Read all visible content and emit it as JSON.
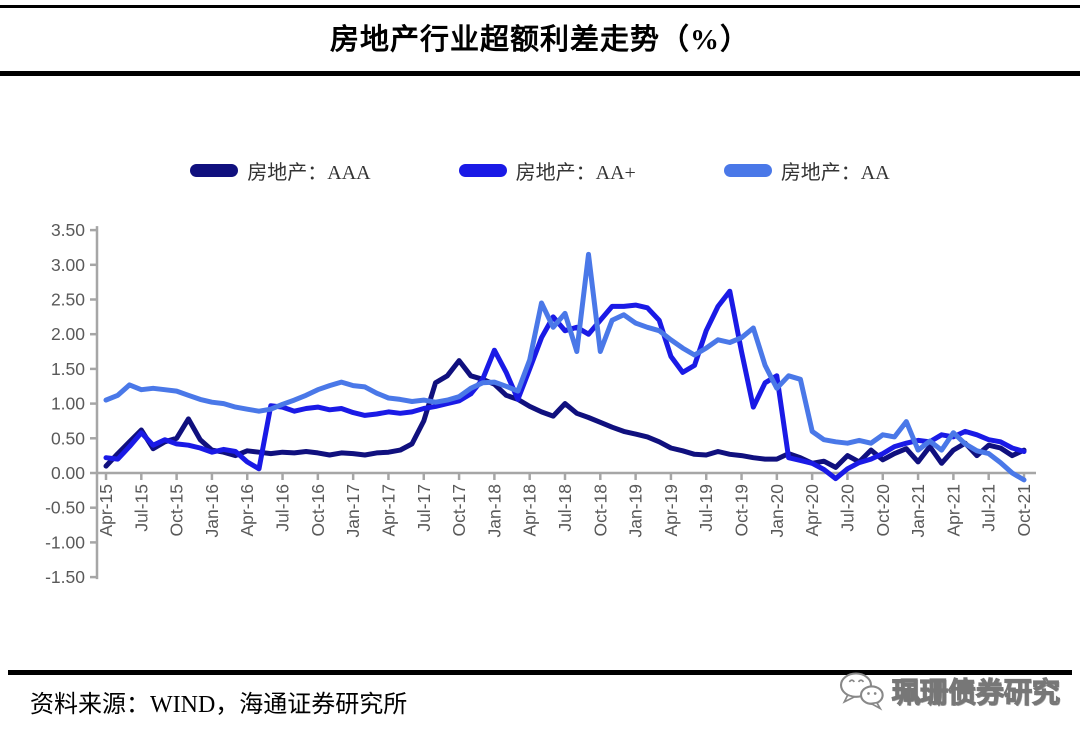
{
  "title": "房地产行业超额利差走势（%）",
  "legend": [
    {
      "label": "房地产：AAA",
      "color": "#10107E"
    },
    {
      "label": "房地产：AA+",
      "color": "#1A1AE6"
    },
    {
      "label": "房地产：AA",
      "color": "#4A78E8"
    }
  ],
  "source": {
    "label": "资料来源：WIND，海通证券研究所"
  },
  "watermark": {
    "text": "珮珊债券研究",
    "icon": "wechat-icon"
  },
  "chart_data": {
    "type": "line",
    "title": "房地产行业超额利差走势（%）",
    "xlabel": "",
    "ylabel": "",
    "ylim": [
      -1.5,
      3.5
    ],
    "ytick_step": 0.5,
    "grid": false,
    "legend_position": "top",
    "axis_color": "#a6a6a6",
    "label_color": "#595959",
    "ytick_labels": [
      "3.50",
      "3.00",
      "2.50",
      "2.00",
      "1.50",
      "1.00",
      "0.50",
      "0.00",
      "-0.50",
      "-1.00",
      "-1.50"
    ],
    "xtick_labels": [
      "Apr-15",
      "Jul-15",
      "Oct-15",
      "Jan-16",
      "Apr-16",
      "Jul-16",
      "Oct-16",
      "Jan-17",
      "Apr-17",
      "Jul-17",
      "Oct-17",
      "Jan-18",
      "Apr-18",
      "Jul-18",
      "Oct-18",
      "Jan-19",
      "Apr-19",
      "Jul-19",
      "Oct-19",
      "Jan-20",
      "Apr-20",
      "Jul-20",
      "Oct-20",
      "Jan-21",
      "Apr-21",
      "Jul-21",
      "Oct-21"
    ],
    "points_per_tick": 3,
    "x_frequency": "monthly",
    "x_range": [
      "Apr-15",
      "Oct-21"
    ],
    "series": [
      {
        "name": "房地产：AAA",
        "color": "#10107E",
        "values": [
          0.1,
          0.28,
          0.45,
          0.62,
          0.35,
          0.45,
          0.5,
          0.78,
          0.48,
          0.33,
          0.3,
          0.25,
          0.32,
          0.3,
          0.28,
          0.3,
          0.29,
          0.31,
          0.29,
          0.26,
          0.29,
          0.28,
          0.26,
          0.29,
          0.3,
          0.33,
          0.42,
          0.75,
          1.3,
          1.4,
          1.62,
          1.4,
          1.35,
          1.28,
          1.12,
          1.06,
          0.96,
          0.88,
          0.82,
          1.0,
          0.86,
          0.8,
          0.73,
          0.66,
          0.6,
          0.56,
          0.52,
          0.45,
          0.36,
          0.32,
          0.27,
          0.26,
          0.31,
          0.27,
          0.25,
          0.22,
          0.2,
          0.2,
          0.28,
          0.22,
          0.14,
          0.17,
          0.08,
          0.25,
          0.16,
          0.33,
          0.19,
          0.28,
          0.35,
          0.16,
          0.38,
          0.14,
          0.33,
          0.43,
          0.25,
          0.4,
          0.36,
          0.25,
          0.33
        ]
      },
      {
        "name": "房地产：AA+",
        "color": "#1A1AE6",
        "values": [
          0.22,
          0.2,
          0.38,
          0.58,
          0.4,
          0.48,
          0.42,
          0.4,
          0.36,
          0.3,
          0.34,
          0.31,
          0.16,
          0.06,
          0.97,
          0.95,
          0.89,
          0.93,
          0.95,
          0.91,
          0.93,
          0.87,
          0.83,
          0.85,
          0.88,
          0.86,
          0.88,
          0.93,
          0.96,
          1.0,
          1.04,
          1.14,
          1.35,
          1.77,
          1.45,
          1.06,
          1.5,
          1.95,
          2.25,
          2.05,
          2.1,
          2.0,
          2.2,
          2.4,
          2.4,
          2.42,
          2.38,
          2.2,
          1.68,
          1.45,
          1.55,
          2.05,
          2.4,
          2.62,
          1.75,
          0.95,
          1.3,
          1.4,
          0.22,
          0.18,
          0.14,
          0.05,
          -0.08,
          0.06,
          0.15,
          0.2,
          0.28,
          0.38,
          0.43,
          0.47,
          0.45,
          0.55,
          0.52,
          0.6,
          0.55,
          0.48,
          0.45,
          0.36,
          0.31
        ]
      },
      {
        "name": "房地产：AA",
        "color": "#4A78E8",
        "values": [
          1.05,
          1.12,
          1.27,
          1.2,
          1.22,
          1.2,
          1.18,
          1.12,
          1.06,
          1.02,
          1.0,
          0.95,
          0.92,
          0.89,
          0.92,
          0.99,
          1.05,
          1.12,
          1.2,
          1.26,
          1.31,
          1.26,
          1.24,
          1.15,
          1.08,
          1.06,
          1.03,
          1.05,
          1.02,
          1.05,
          1.1,
          1.22,
          1.3,
          1.31,
          1.25,
          1.18,
          1.63,
          2.45,
          2.1,
          2.3,
          1.75,
          3.15,
          1.75,
          2.2,
          2.28,
          2.16,
          2.1,
          2.05,
          1.92,
          1.8,
          1.7,
          1.8,
          1.92,
          1.88,
          1.95,
          2.09,
          1.55,
          1.22,
          1.4,
          1.35,
          0.6,
          0.48,
          0.45,
          0.43,
          0.47,
          0.43,
          0.55,
          0.52,
          0.74,
          0.33,
          0.46,
          0.33,
          0.58,
          0.42,
          0.32,
          0.28,
          0.15,
          0.0,
          -0.1
        ]
      }
    ]
  }
}
